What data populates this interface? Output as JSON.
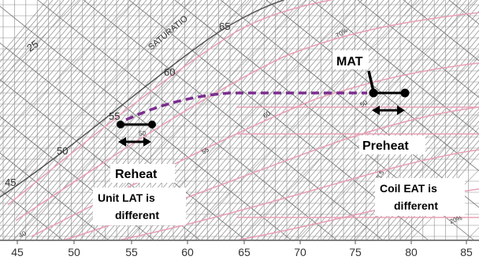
{
  "chart_data": {
    "type": "psychrometric-chart",
    "x_axis": {
      "ticks": [
        "45",
        "50",
        "55",
        "60",
        "65",
        "70",
        "75",
        "80",
        "85"
      ]
    },
    "curve_labels": {
      "saturation": "SATURATIO",
      "wet_bulb_25": "25",
      "wet_bulb_65": "65",
      "wet_bulb_60": "60",
      "wet_bulb_55": "55",
      "wet_bulb_50": "50",
      "wet_bulb_45": "45",
      "small_a": "50",
      "small_b": "55",
      "small_c": "60",
      "small_d": "70%",
      "small_e": "50",
      "small_f": "13.5",
      "small_g": "40",
      "small_h": "20%"
    },
    "annotations": {
      "mat": "MAT",
      "preheat": "Preheat",
      "reheat": "Reheat",
      "unit_lat_line1": "Unit LAT is",
      "unit_lat_line2": "different",
      "coil_eat_line1": "Coil EAT is",
      "coil_eat_line2": "different"
    },
    "colors": {
      "grid": "#8c8c8c",
      "rh_curves": "#e8a0b4",
      "process_path": "#7b2d8e",
      "markers": "#000000"
    }
  }
}
